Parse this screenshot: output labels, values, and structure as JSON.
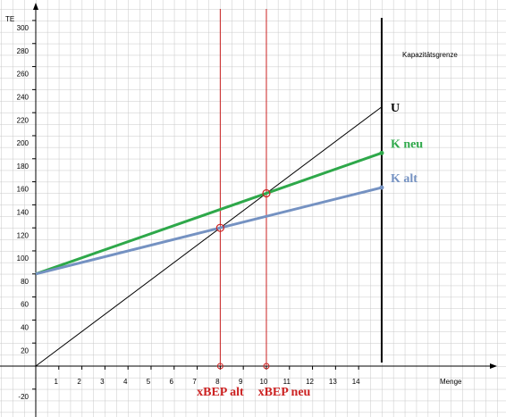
{
  "chart_data": {
    "type": "line",
    "x_label": "Menge",
    "y_label": "TE",
    "x": [
      0,
      15
    ],
    "series": [
      {
        "name": "U",
        "color": "#000000",
        "values": [
          0,
          225
        ]
      },
      {
        "name": "K neu",
        "color": "#2ea84a",
        "values": [
          80,
          185
        ]
      },
      {
        "name": "K alt",
        "color": "#7592c2",
        "values": [
          80,
          155
        ]
      }
    ],
    "capacity": {
      "label": "Kapazitätsgrenze",
      "x": 15
    },
    "bep": [
      {
        "label": "xBEP alt",
        "x": 8,
        "y": 120,
        "color": "#cc2222"
      },
      {
        "label": "xBEP neu",
        "x": 10,
        "y": 150,
        "color": "#cc2222"
      }
    ],
    "xlim": [
      -1.55,
      20.39
    ],
    "ylim": [
      -44.2,
      317.8
    ],
    "xticks": [
      1,
      2,
      3,
      4,
      5,
      6,
      7,
      8,
      9,
      10,
      11,
      12,
      13,
      14
    ],
    "yticks": [
      -20,
      20,
      40,
      60,
      80,
      100,
      120,
      140,
      160,
      180,
      200,
      220,
      240,
      260,
      280,
      300
    ],
    "grid": true
  }
}
